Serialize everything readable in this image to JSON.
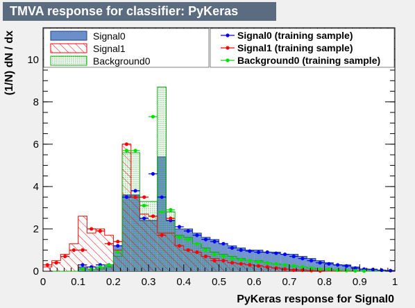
{
  "window": {
    "title": "TMVA response for classifier: PyKeras"
  },
  "chart_data": {
    "type": "bar",
    "xlabel": "PyKeras response for Signal0",
    "ylabel": "(1/N) dN / dx",
    "xlim": [
      0,
      1
    ],
    "ylim": [
      0,
      11.5
    ],
    "x_ticks": [
      "0",
      "0.1",
      "0.2",
      "0.3",
      "0.4",
      "0.5",
      "0.6",
      "0.7",
      "0.8",
      "0.9",
      "1"
    ],
    "y_ticks": [
      "0",
      "2",
      "4",
      "6",
      "8",
      "10"
    ],
    "bin_edges": [
      0.0,
      0.025,
      0.05,
      0.075,
      0.1,
      0.125,
      0.15,
      0.175,
      0.2,
      0.225,
      0.25,
      0.275,
      0.3,
      0.325,
      0.35,
      0.375,
      0.4,
      0.425,
      0.45,
      0.475,
      0.5,
      0.525,
      0.55,
      0.575,
      0.6,
      0.625,
      0.65,
      0.675,
      0.7,
      0.725,
      0.75,
      0.775,
      0.8,
      0.825,
      0.85,
      0.875,
      0.9,
      0.925,
      0.95,
      0.975,
      1.0
    ],
    "hist_series": [
      {
        "name": "Signal0",
        "style": "filled",
        "color": "#6a8fc9",
        "values": [
          0,
          0,
          0,
          0,
          0.2,
          0.1,
          0.2,
          0.3,
          1.2,
          3.6,
          3.6,
          2.4,
          2.4,
          5.4,
          2.4,
          2.0,
          2.0,
          1.8,
          1.6,
          1.5,
          1.3,
          1.2,
          1.1,
          1.0,
          1.0,
          0.9,
          0.9,
          0.8,
          0.8,
          0.7,
          0.6,
          0.5,
          0.4,
          0.3,
          0.3,
          0.2,
          0.1,
          0.1,
          0.05,
          0.02
        ]
      },
      {
        "name": "Signal1",
        "style": "hatched",
        "color": "#ff0000",
        "values": [
          0.2,
          0.5,
          0.8,
          1.3,
          2.6,
          1.8,
          2.0,
          1.7,
          1.0,
          6.0,
          3.5,
          2.7,
          2.6,
          1.8,
          1.8,
          1.2,
          1.0,
          0.9,
          0.7,
          0.6,
          0.5,
          0.4,
          0.35,
          0.3,
          0.25,
          0.2,
          0.15,
          0.1,
          0.08,
          0.05,
          0.03,
          0.02,
          0,
          0,
          0,
          0,
          0,
          0,
          0,
          0
        ]
      },
      {
        "name": "Background0",
        "style": "dotted",
        "color": "#00d200",
        "values": [
          0,
          0,
          0,
          0,
          0.1,
          0.1,
          0.1,
          0.2,
          0.7,
          5.6,
          5.6,
          3.3,
          3.3,
          8.7,
          2.8,
          1.7,
          1.6,
          1.3,
          1.1,
          0.9,
          0.8,
          0.7,
          0.6,
          0.5,
          0.5,
          0.4,
          0.35,
          0.3,
          0.25,
          0.2,
          0.15,
          0.1,
          0.08,
          0.05,
          0.03,
          0.02,
          0.01,
          0,
          0,
          0
        ]
      }
    ],
    "point_series": [
      {
        "name": "Signal0 (training sample)",
        "color": "#0000ff",
        "values": [
          0,
          0,
          0,
          0,
          0.3,
          0.2,
          0.3,
          0.3,
          1.2,
          3.5,
          3.8,
          2.5,
          4.6,
          3.5,
          2.4,
          2.1,
          1.9,
          1.7,
          1.5,
          1.4,
          1.3,
          1.1,
          1.0,
          0.95,
          0.9,
          0.9,
          0.85,
          0.8,
          0.7,
          0.6,
          0.5,
          0.4,
          0.35,
          0.3,
          0.25,
          0.15,
          0.1,
          0.08,
          0.05,
          0.03
        ]
      },
      {
        "name": "Signal1 (training sample)",
        "color": "#ff0000",
        "values": [
          0.3,
          0.4,
          0.7,
          1.0,
          1.0,
          2.0,
          1.9,
          1.3,
          1.4,
          6.0,
          3.5,
          3.5,
          2.6,
          1.7,
          2.5,
          1.2,
          1.0,
          0.9,
          0.7,
          0.5,
          0.5,
          0.4,
          0.35,
          0.3,
          0.25,
          0.2,
          0.15,
          0.1,
          0.05,
          0.05,
          0.03,
          0.02,
          0,
          0,
          0,
          0,
          0,
          0,
          0,
          0
        ]
      },
      {
        "name": "Background0 (training sample)",
        "color": "#00e000",
        "values": [
          0,
          0,
          0,
          0,
          0.1,
          0.1,
          0.2,
          0.3,
          0.9,
          5.7,
          5.7,
          3.1,
          7.3,
          2.8,
          2.9,
          1.6,
          1.5,
          1.3,
          1.0,
          0.8,
          0.7,
          0.6,
          0.55,
          0.5,
          0.45,
          0.4,
          0.35,
          0.3,
          0.25,
          0.2,
          0.15,
          0.1,
          0.1,
          0.05,
          0.03,
          0.02,
          0.01,
          0,
          0,
          0
        ]
      }
    ],
    "legend_position": "top"
  }
}
